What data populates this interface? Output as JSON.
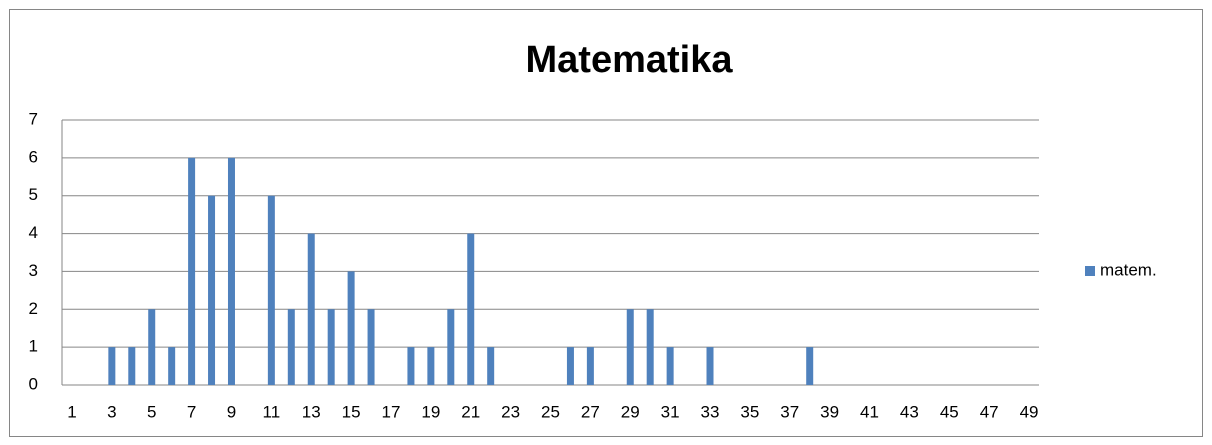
{
  "chart_data": {
    "type": "bar",
    "title": "Matematika",
    "categories": [
      1,
      null,
      3,
      null,
      5,
      null,
      7,
      null,
      9,
      null,
      11,
      null,
      13,
      null,
      15,
      null,
      17,
      null,
      19,
      null,
      21,
      null,
      23,
      null,
      25,
      null,
      27,
      null,
      29,
      null,
      31,
      null,
      33,
      null,
      35,
      null,
      37,
      null,
      39,
      null,
      41,
      null,
      43,
      null,
      45,
      null,
      47,
      null,
      49
    ],
    "series": [
      {
        "name": "matem.",
        "color": "#4f81bd",
        "values": [
          0,
          0,
          1,
          1,
          2,
          1,
          6,
          5,
          6,
          0,
          5,
          2,
          4,
          2,
          3,
          2,
          0,
          1,
          1,
          2,
          4,
          1,
          0,
          0,
          0,
          1,
          1,
          0,
          2,
          2,
          1,
          0,
          1,
          0,
          0,
          0,
          0,
          1,
          0,
          0,
          0,
          0,
          0,
          0,
          0,
          0,
          0,
          0,
          0
        ]
      }
    ],
    "ylim": [
      0,
      7
    ],
    "yticks": [
      0,
      1,
      2,
      3,
      4,
      5,
      6,
      7
    ],
    "grid": true,
    "legend": "right"
  }
}
